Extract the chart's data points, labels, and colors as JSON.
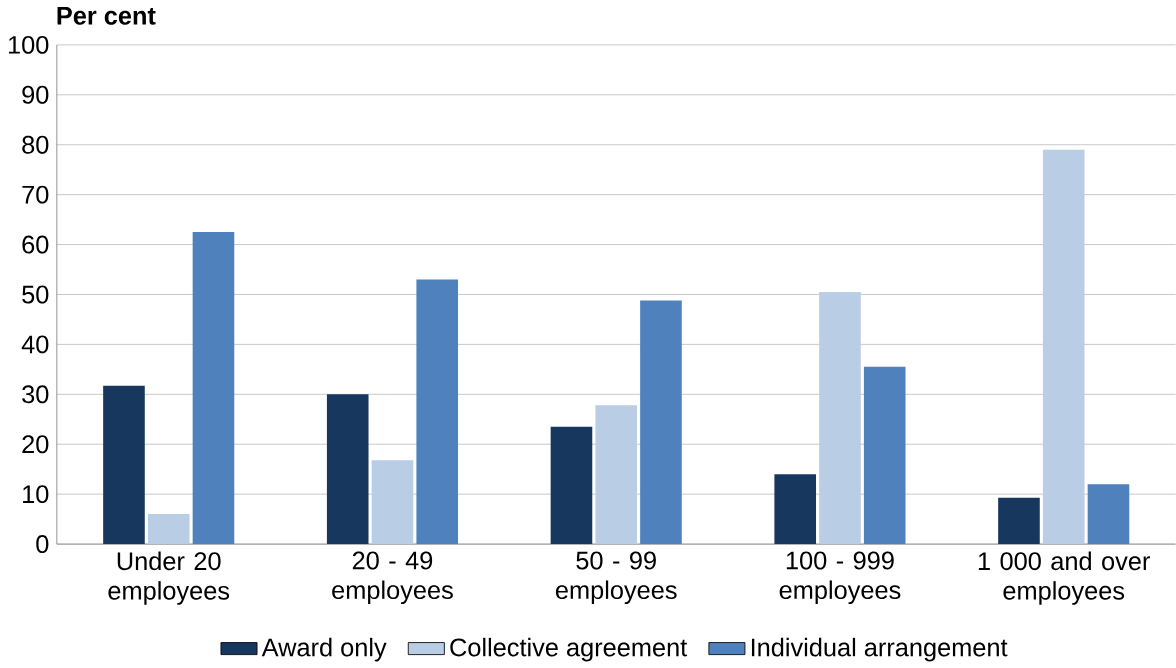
{
  "chart_data": {
    "type": "bar",
    "ylabel": "Per cent",
    "categories": [
      "Under 20 employees",
      "20 - 49 employees",
      "50 - 99 employees",
      "100 - 999 employees",
      "1 000 and over employees"
    ],
    "series": [
      {
        "name": "Award only",
        "color": "#17375e",
        "values": [
          31.7,
          30,
          23.5,
          14,
          9.3
        ]
      },
      {
        "name": "Collective agreement",
        "color": "#b9cde5",
        "values": [
          6,
          16.8,
          27.8,
          50.5,
          79
        ]
      },
      {
        "name": "Individual arrangement",
        "color": "#4f81bd",
        "values": [
          62.5,
          53,
          48.8,
          35.5,
          12
        ]
      }
    ],
    "ylim": [
      0,
      100
    ],
    "yticks": [
      0,
      10,
      20,
      30,
      40,
      50,
      60,
      70,
      80,
      90,
      100
    ],
    "grid": "y",
    "legend": "bottom"
  }
}
